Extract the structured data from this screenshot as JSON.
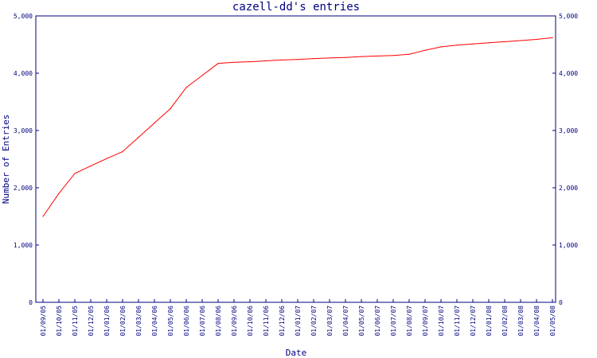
{
  "chart_data": {
    "type": "line",
    "title": "cazell-dd's entries",
    "xlabel": "Date",
    "ylabel": "Number of Entries",
    "ylim": [
      0,
      5000
    ],
    "y_ticks": [
      "0",
      "1,000",
      "2,000",
      "3,000",
      "4,000",
      "5,000"
    ],
    "y_tick_values": [
      0,
      1000,
      2000,
      3000,
      4000,
      5000
    ],
    "right_axis": true,
    "grid": false,
    "colors": {
      "axis": "#000080",
      "text": "#000080",
      "line": "#ff0000",
      "background": "#ffffff"
    },
    "categories": [
      "01/09/05",
      "01/10/05",
      "01/11/05",
      "01/12/05",
      "01/01/06",
      "01/02/06",
      "01/03/06",
      "01/04/06",
      "01/05/06",
      "01/06/06",
      "01/07/06",
      "01/08/06",
      "01/09/06",
      "01/10/06",
      "01/11/06",
      "01/12/06",
      "01/01/07",
      "01/02/07",
      "01/03/07",
      "01/04/07",
      "01/05/07",
      "01/06/07",
      "01/07/07",
      "01/08/07",
      "01/09/07",
      "01/10/07",
      "01/11/07",
      "01/12/07",
      "01/01/08",
      "01/02/08",
      "01/03/08",
      "01/04/08",
      "01/05/08"
    ],
    "values": [
      1500,
      1900,
      2250,
      2380,
      2510,
      2630,
      2880,
      3130,
      3380,
      3750,
      3960,
      4170,
      4190,
      4200,
      4215,
      4230,
      4240,
      4255,
      4265,
      4275,
      4290,
      4300,
      4310,
      4330,
      4400,
      4460,
      4490,
      4510,
      4530,
      4550,
      4570,
      4590,
      4620
    ]
  }
}
